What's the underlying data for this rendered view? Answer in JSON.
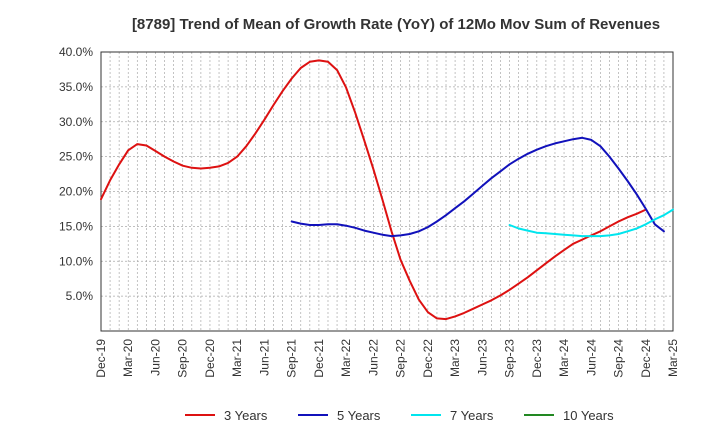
{
  "chart_data": {
    "type": "line",
    "title": "[8789]  Trend of Mean of Growth Rate (YoY) of 12Mo Mov Sum of Revenues",
    "xlabel": "",
    "ylabel": "",
    "ylim": [
      0,
      40
    ],
    "y_ticks": [
      5,
      10,
      15,
      20,
      25,
      30,
      35,
      40
    ],
    "y_tick_labels": [
      "5.0%",
      "10.0%",
      "15.0%",
      "20.0%",
      "25.0%",
      "30.0%",
      "35.0%",
      "40.0%"
    ],
    "x_tick_labels": [
      "Dec-19",
      "Mar-20",
      "Jun-20",
      "Sep-20",
      "Dec-20",
      "Mar-21",
      "Jun-21",
      "Sep-21",
      "Dec-21",
      "Mar-22",
      "Jun-22",
      "Sep-22",
      "Dec-22",
      "Mar-23",
      "Jun-23",
      "Sep-23",
      "Dec-23",
      "Mar-24",
      "Jun-24",
      "Sep-24",
      "Dec-24",
      "Mar-25"
    ],
    "grid": true,
    "legend_position": "bottom",
    "series": [
      {
        "name": "3 Years",
        "color": "#dd1111",
        "start_index": 0,
        "values": [
          18.9,
          21.6,
          23.9,
          25.9,
          26.8,
          26.6,
          25.8,
          25.0,
          24.3,
          23.7,
          23.4,
          23.3,
          23.4,
          23.6,
          24.1,
          25.0,
          26.5,
          28.3,
          30.3,
          32.4,
          34.4,
          36.2,
          37.7,
          38.6,
          38.8,
          38.6,
          37.4,
          34.9,
          31.3,
          27.3,
          23.2,
          18.8,
          14.3,
          10.2,
          7.2,
          4.5,
          2.7,
          1.8,
          1.7,
          2.1,
          2.6,
          3.2,
          3.8,
          4.4,
          5.1,
          5.9,
          6.8,
          7.7,
          8.7,
          9.7,
          10.7,
          11.6,
          12.5,
          13.1,
          13.7,
          14.3,
          15.0,
          15.7,
          16.3,
          16.8,
          17.4
        ]
      },
      {
        "name": "5 Years",
        "color": "#1111bb",
        "start_index": 21,
        "values": [
          15.7,
          15.4,
          15.2,
          15.2,
          15.3,
          15.3,
          15.1,
          14.8,
          14.4,
          14.1,
          13.8,
          13.6,
          13.7,
          13.9,
          14.3,
          14.9,
          15.7,
          16.6,
          17.6,
          18.6,
          19.7,
          20.8,
          21.9,
          22.9,
          23.9,
          24.7,
          25.4,
          26.0,
          26.5,
          26.9,
          27.2,
          27.5,
          27.7,
          27.4,
          26.5,
          25.0,
          23.3,
          21.5,
          19.6,
          17.5,
          15.3,
          14.3
        ]
      },
      {
        "name": "7 Years",
        "color": "#00e5ee",
        "start_index": 45,
        "values": [
          15.2,
          14.7,
          14.4,
          14.1,
          14.0,
          13.9,
          13.8,
          13.7,
          13.6,
          13.6,
          13.6,
          13.7,
          13.9,
          14.3,
          14.7,
          15.3,
          16.0,
          16.6,
          17.4
        ]
      },
      {
        "name": "10 Years",
        "color": "#228822",
        "start_index": 0,
        "values": []
      }
    ]
  }
}
